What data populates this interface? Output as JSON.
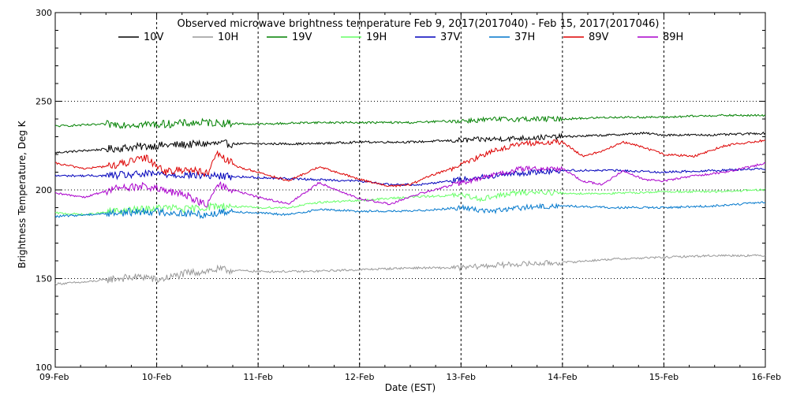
{
  "chart_data": {
    "type": "line",
    "title": "Observed microwave brightness temperature Feb  9, 2017(2017040) - Feb 15, 2017(2017046)",
    "xlabel": "Date (EST)",
    "ylabel": "Brightness Temperature, Deg K",
    "xlim": [
      0,
      7
    ],
    "ylim": [
      100,
      300
    ],
    "x_ticks": [
      {
        "value": 0,
        "label": "09-Feb"
      },
      {
        "value": 1,
        "label": "10-Feb"
      },
      {
        "value": 2,
        "label": "11-Feb"
      },
      {
        "value": 3,
        "label": "12-Feb"
      },
      {
        "value": 4,
        "label": "13-Feb"
      },
      {
        "value": 5,
        "label": "14-Feb"
      },
      {
        "value": 6,
        "label": "15-Feb"
      },
      {
        "value": 7,
        "label": "16-Feb"
      }
    ],
    "y_ticks": [
      100,
      150,
      200,
      250,
      300
    ],
    "grid": "dotted",
    "legend_position": "top",
    "series": [
      {
        "name": "10V",
        "color": "#000000",
        "x": [
          0,
          0.5,
          1,
          1.5,
          2,
          2.5,
          3,
          3.5,
          4,
          4.5,
          5,
          5.5,
          5.8,
          6,
          6.5,
          7
        ],
        "y": [
          221,
          223,
          225,
          226,
          226,
          226,
          227,
          227,
          228,
          229,
          230,
          231,
          232,
          231,
          231,
          232
        ]
      },
      {
        "name": "10H",
        "color": "#999999",
        "x": [
          0,
          0.3,
          0.6,
          0.9,
          1.0,
          1.3,
          1.6,
          2,
          2.5,
          3,
          3.5,
          4,
          4.2,
          4.5,
          5,
          5.5,
          6,
          6.5,
          7
        ],
        "y": [
          147,
          148,
          150,
          151,
          149,
          153,
          155,
          154,
          154,
          155,
          156,
          156,
          157,
          158,
          159,
          161,
          162,
          163,
          163
        ]
      },
      {
        "name": "19V",
        "color": "#008000",
        "x": [
          0,
          0.5,
          1,
          1.5,
          2,
          2.5,
          3,
          3.5,
          4,
          4.5,
          5,
          5.5,
          6,
          6.5,
          7
        ],
        "y": [
          236,
          237,
          237,
          238,
          237,
          238,
          238,
          238,
          239,
          240,
          240,
          241,
          241,
          242,
          242
        ]
      },
      {
        "name": "19H",
        "color": "#66ff66",
        "x": [
          0,
          0.3,
          0.6,
          0.9,
          1.1,
          1.3,
          1.6,
          2,
          2.3,
          2.6,
          3,
          3.5,
          4,
          4.2,
          4.5,
          4.8,
          5,
          5.5,
          6,
          6.5,
          7
        ],
        "y": [
          187,
          186,
          188,
          189,
          190,
          189,
          191,
          190,
          190,
          193,
          194,
          196,
          197,
          195,
          198,
          199,
          198,
          198,
          199,
          199,
          200
        ]
      },
      {
        "name": "37V",
        "color": "#0000bb",
        "x": [
          0,
          0.5,
          1,
          1.5,
          2,
          2.5,
          3,
          3.3,
          3.6,
          4,
          4.5,
          5,
          5.5,
          6,
          6.5,
          7
        ],
        "y": [
          208,
          208,
          209,
          208,
          207,
          206,
          205,
          203,
          203,
          206,
          209,
          211,
          211,
          210,
          211,
          212
        ]
      },
      {
        "name": "37H",
        "color": "#0077cc",
        "x": [
          0,
          0.3,
          0.6,
          0.9,
          1.2,
          1.5,
          1.7,
          2,
          2.3,
          2.6,
          3,
          3.5,
          4,
          4.3,
          4.6,
          5,
          5.5,
          6,
          6.5,
          7
        ],
        "y": [
          185,
          186,
          187,
          188,
          187,
          186,
          188,
          187,
          186,
          189,
          188,
          188,
          190,
          188,
          190,
          191,
          190,
          190,
          191,
          193
        ]
      },
      {
        "name": "89V",
        "color": "#dd0000",
        "x": [
          0,
          0.3,
          0.6,
          0.9,
          1.1,
          1.3,
          1.5,
          1.6,
          1.8,
          2,
          2.3,
          2.6,
          3,
          3.3,
          3.5,
          3.7,
          4,
          4.3,
          4.6,
          5,
          5.2,
          5.4,
          5.6,
          5.8,
          6,
          6.3,
          6.6,
          7
        ],
        "y": [
          215,
          212,
          214,
          218,
          210,
          212,
          209,
          220,
          213,
          210,
          205,
          213,
          206,
          202,
          203,
          208,
          214,
          222,
          226,
          227,
          219,
          222,
          227,
          224,
          220,
          219,
          225,
          228
        ]
      },
      {
        "name": "89H",
        "color": "#aa00cc",
        "x": [
          0,
          0.3,
          0.6,
          0.9,
          1.1,
          1.3,
          1.5,
          1.6,
          1.8,
          2,
          2.3,
          2.6,
          3,
          3.3,
          3.6,
          4,
          4.3,
          4.6,
          5,
          5.2,
          5.4,
          5.6,
          5.8,
          6,
          6.3,
          6.6,
          7
        ],
        "y": [
          198,
          196,
          201,
          202,
          199,
          197,
          191,
          203,
          199,
          196,
          192,
          204,
          195,
          192,
          198,
          204,
          208,
          212,
          212,
          205,
          203,
          211,
          206,
          205,
          208,
          210,
          215
        ]
      }
    ]
  }
}
